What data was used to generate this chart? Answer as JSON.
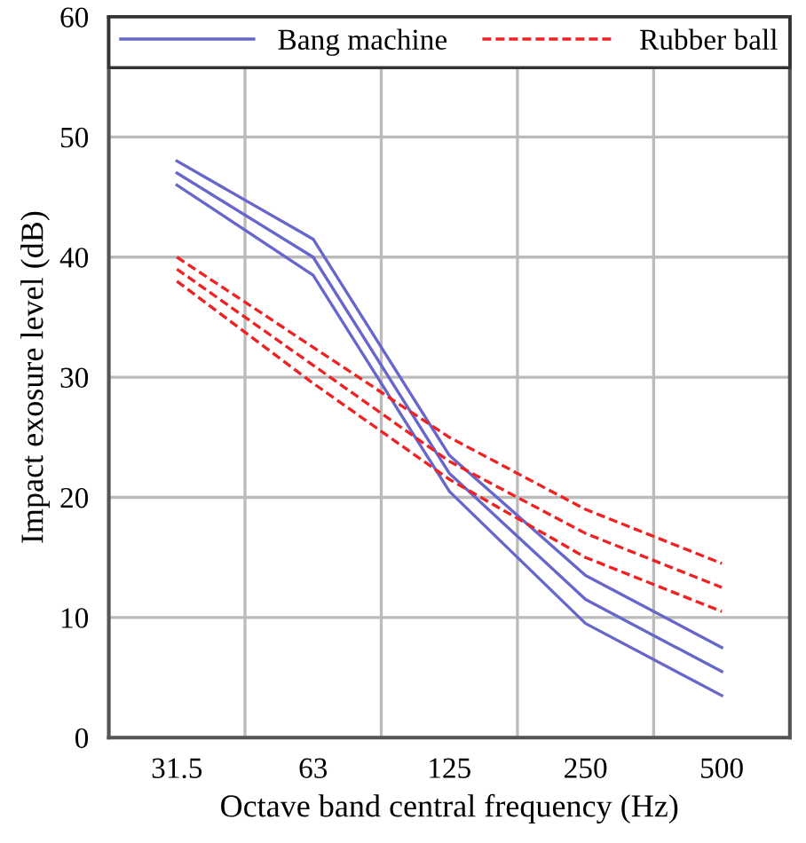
{
  "chart_data": {
    "type": "line",
    "xlabel": "Octave band central frequency (Hz)",
    "ylabel": "Impact exosure level (dB)",
    "categories": [
      "31.5",
      "63",
      "125",
      "250",
      "500"
    ],
    "series": [
      {
        "name": "Bang machine",
        "color": "#6666cc",
        "line_style": "solid",
        "values": [
          48,
          41.5,
          23.5,
          13.5,
          7.5
        ]
      },
      {
        "color": "#6666cc",
        "line_style": "solid",
        "values": [
          47,
          40,
          22,
          11.5,
          5.5
        ]
      },
      {
        "color": "#6666cc",
        "line_style": "solid",
        "values": [
          46,
          38.5,
          20.5,
          9.5,
          3.5
        ]
      },
      {
        "name": "Rubber ball",
        "color": "#ee2222",
        "line_style": "dashed",
        "values": [
          40,
          32.5,
          25,
          19,
          14.5
        ]
      },
      {
        "color": "#ee2222",
        "line_style": "dashed",
        "values": [
          39,
          31,
          23,
          17,
          12.5
        ]
      },
      {
        "color": "#ee2222",
        "line_style": "dashed",
        "values": [
          38,
          29.5,
          21.5,
          15,
          10.5
        ]
      }
    ],
    "ylim": [
      0,
      60
    ],
    "yticks": [
      0,
      10,
      20,
      30,
      40,
      50,
      60
    ],
    "grid": true,
    "legend": "top",
    "marker": "none"
  }
}
